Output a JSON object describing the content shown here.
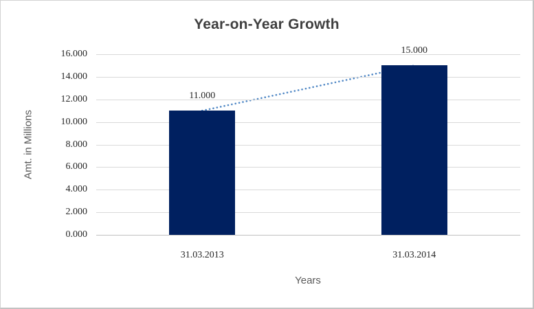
{
  "chart_data": {
    "type": "bar",
    "title": "Year-on-Year Growth",
    "categories": [
      "31.03.2013",
      "31.03.2014"
    ],
    "values": [
      11000,
      15000
    ],
    "value_labels": [
      "11.000",
      "15.000"
    ],
    "xlabel": "Years",
    "ylabel": "Amt. in Millions",
    "ylim": [
      0,
      16000
    ],
    "ytick_step": 2000,
    "ytick_labels": [
      "0.000",
      "2.000",
      "4.000",
      "6.000",
      "8.000",
      "10.000",
      "12.000",
      "14.000",
      "16.000"
    ],
    "grid": true,
    "legend": false,
    "trendline": {
      "style": "dotted",
      "from": "31.03.2013",
      "to": "31.03.2014"
    },
    "colors": {
      "bar": "#002060",
      "trend": "#4f87c5",
      "gridline": "#d9d9d9",
      "axis_line": "#bfbfbf",
      "title": "#3f3f3f",
      "tick": "#262626",
      "axis_title": "#595959",
      "border": "#c6c6c6"
    }
  }
}
